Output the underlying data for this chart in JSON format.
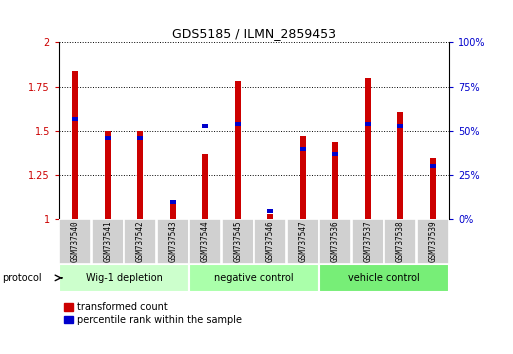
{
  "title": "GDS5185 / ILMN_2859453",
  "samples": [
    "GSM737540",
    "GSM737541",
    "GSM737542",
    "GSM737543",
    "GSM737544",
    "GSM737545",
    "GSM737546",
    "GSM737547",
    "GSM737536",
    "GSM737537",
    "GSM737538",
    "GSM737539"
  ],
  "transformed_count": [
    1.84,
    1.5,
    1.5,
    1.1,
    1.37,
    1.78,
    1.03,
    1.47,
    1.44,
    1.8,
    1.61,
    1.35
  ],
  "percentile_rank_pct": [
    57,
    46,
    46,
    10,
    53,
    54,
    5,
    40,
    37,
    54,
    53,
    30
  ],
  "groups": [
    {
      "label": "Wig-1 depletion",
      "start": 0,
      "end": 4
    },
    {
      "label": "negative control",
      "start": 4,
      "end": 8
    },
    {
      "label": "vehicle control",
      "start": 8,
      "end": 12
    }
  ],
  "group_colors": [
    "#ccffcc",
    "#aaffaa",
    "#77ee77"
  ],
  "ylim_left": [
    1.0,
    2.0
  ],
  "ylim_right": [
    0.0,
    100.0
  ],
  "yticks_left": [
    1.0,
    1.25,
    1.5,
    1.75,
    2.0
  ],
  "ytick_labels_left": [
    "1",
    "1.25",
    "1.5",
    "1.75",
    "2"
  ],
  "yticks_right": [
    0.0,
    25.0,
    50.0,
    75.0,
    100.0
  ],
  "ytick_labels_right": [
    "0%",
    "25%",
    "50%",
    "75%",
    "100%"
  ],
  "red_color": "#cc0000",
  "blue_color": "#0000cc",
  "protocol_label": "protocol",
  "legend1": "transformed count",
  "legend2": "percentile rank within the sample",
  "bar_width": 0.18
}
